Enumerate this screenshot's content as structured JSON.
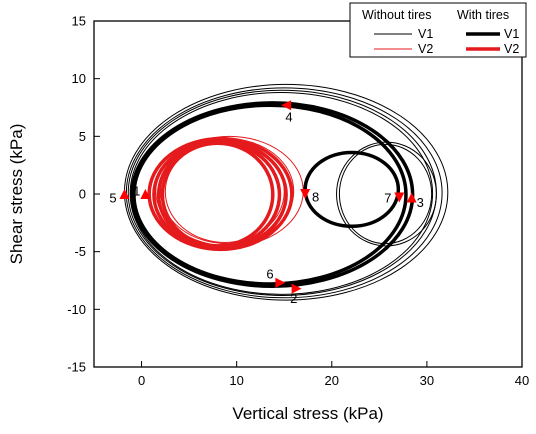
{
  "chart_data": {
    "type": "line",
    "xlabel": "Vertical stress (kPa)",
    "ylabel": "Shear stress (kPa)",
    "xlim": [
      -5,
      40
    ],
    "ylim": [
      -15,
      15
    ],
    "x_ticks": [
      0,
      10,
      20,
      30,
      40
    ],
    "y_ticks": [
      -15,
      -10,
      -5,
      0,
      5,
      10,
      15
    ],
    "x_tick_labels": [
      "0",
      "10",
      "20",
      "30",
      "40"
    ],
    "y_tick_labels": [
      "-15",
      "-10",
      "-5",
      "0",
      "5",
      "10",
      "15"
    ],
    "grid": false,
    "legend": {
      "placement": "top-right",
      "group_headers": [
        "Without tires",
        "With tires"
      ],
      "rows": [
        "V1",
        "V2"
      ]
    },
    "series": [
      {
        "name": "V1",
        "group": "Without tires",
        "color": "#000000",
        "weight": "thin",
        "loops": [
          {
            "x": [
              -1.8,
              32.2
            ],
            "y": [
              -9.2,
              9.5
            ]
          },
          {
            "x": [
              -1.6,
              31.6
            ],
            "y": [
              -9.0,
              9.2
            ]
          },
          {
            "x": [
              -1.4,
              31.0
            ],
            "y": [
              -8.8,
              9.0
            ]
          },
          {
            "x": [
              -1.2,
              30.6
            ],
            "y": [
              -8.7,
              8.8
            ]
          },
          {
            "x": [
              20.5,
              31.0
            ],
            "y": [
              -4.5,
              4.5
            ]
          },
          {
            "x": [
              20.8,
              30.5
            ],
            "y": [
              -4.3,
              4.3
            ]
          }
        ]
      },
      {
        "name": "V1",
        "group": "With tires",
        "color": "#000000",
        "weight": "thick",
        "loops": [
          {
            "x": [
              -1.0,
              28.5
            ],
            "y": [
              -8.0,
              7.9
            ]
          },
          {
            "x": [
              -0.8,
              27.8
            ],
            "y": [
              -7.8,
              7.7
            ]
          },
          {
            "x": [
              17.2,
              27.0
            ],
            "y": [
              -2.8,
              3.6
            ]
          }
        ]
      },
      {
        "name": "V2",
        "group": "Without tires",
        "color": "#e41a1c",
        "weight": "thin",
        "loops": [
          {
            "x": [
              1.5,
              17.0
            ],
            "y": [
              -4.5,
              5.0
            ]
          },
          {
            "x": [
              2.0,
              16.0
            ],
            "y": [
              -4.3,
              4.8
            ]
          },
          {
            "x": [
              2.5,
              15.0
            ],
            "y": [
              -4.2,
              4.6
            ]
          }
        ]
      },
      {
        "name": "V2",
        "group": "With tires",
        "color": "#e41a1c",
        "weight": "thick",
        "loops": [
          {
            "x": [
              0.8,
              15.8
            ],
            "y": [
              -4.8,
              4.8
            ]
          },
          {
            "x": [
              1.3,
              15.2
            ],
            "y": [
              -4.7,
              4.6
            ]
          },
          {
            "x": [
              1.8,
              14.5
            ],
            "y": [
              -4.6,
              4.5
            ]
          },
          {
            "x": [
              2.2,
              13.8
            ],
            "y": [
              -4.5,
              4.4
            ]
          }
        ]
      }
    ],
    "direction_markers": [
      {
        "x": -1.8,
        "y": 0.0,
        "dir": "up"
      },
      {
        "x": 0.4,
        "y": 0.0,
        "dir": "up"
      },
      {
        "x": 16.3,
        "y": -8.2,
        "dir": "right"
      },
      {
        "x": 28.4,
        "y": -0.3,
        "dir": "up"
      },
      {
        "x": 15.2,
        "y": 7.7,
        "dir": "left"
      },
      {
        "x": 14.6,
        "y": -7.7,
        "dir": "right"
      },
      {
        "x": 27.1,
        "y": -0.3,
        "dir": "down"
      },
      {
        "x": 17.2,
        "y": 0.0,
        "dir": "down"
      }
    ],
    "point_labels": [
      {
        "text": "1",
        "x": -0.5,
        "y": 0.3
      },
      {
        "text": "2",
        "x": 16.0,
        "y": -9.0
      },
      {
        "text": "3",
        "x": 29.3,
        "y": -0.7
      },
      {
        "text": "4",
        "x": 15.5,
        "y": 6.7
      },
      {
        "text": "5",
        "x": -3.0,
        "y": -0.3
      },
      {
        "text": "6",
        "x": 13.5,
        "y": -6.9
      },
      {
        "text": "7",
        "x": 25.9,
        "y": -0.3
      },
      {
        "text": "8",
        "x": 18.3,
        "y": -0.2
      }
    ]
  }
}
